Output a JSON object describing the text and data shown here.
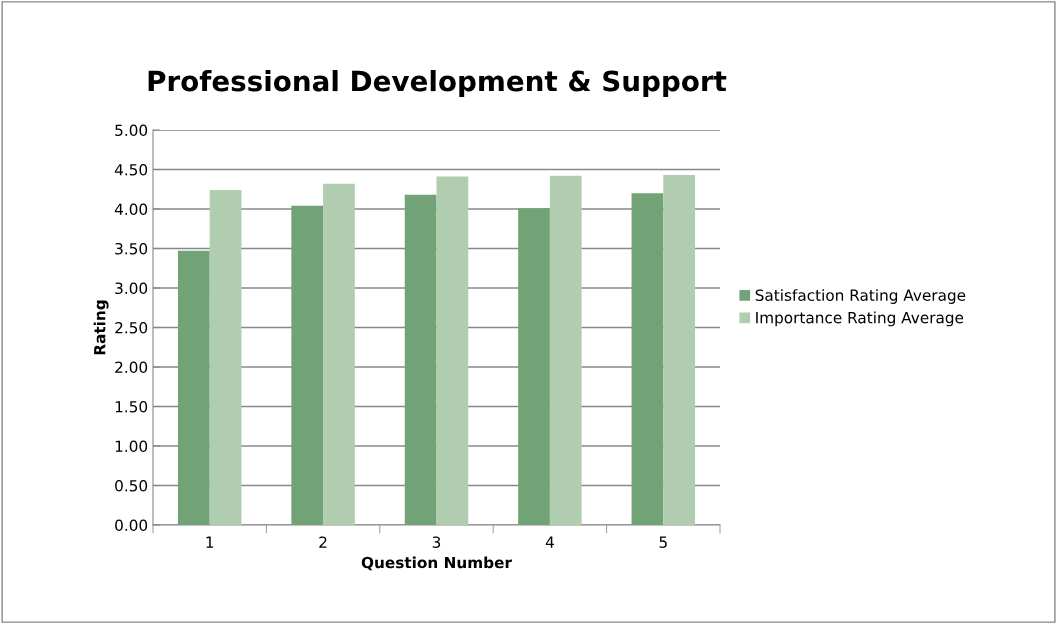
{
  "chart_data": {
    "type": "bar",
    "title": "Professional Development & Support",
    "xlabel": "Question Number",
    "ylabel": "Rating",
    "categories": [
      "1",
      "2",
      "3",
      "4",
      "5"
    ],
    "series": [
      {
        "name": "Satisfaction Rating Average",
        "color": "#71a376",
        "values": [
          3.47,
          4.04,
          4.18,
          4.01,
          4.2
        ]
      },
      {
        "name": "Importance Rating Average",
        "color": "#b0cdb0",
        "values": [
          4.24,
          4.32,
          4.41,
          4.42,
          4.43
        ]
      }
    ],
    "ylim": [
      0,
      5
    ],
    "yticks": [
      {
        "value": 0,
        "label": "0.00"
      },
      {
        "value": 0.5,
        "label": "0.50"
      },
      {
        "value": 1,
        "label": "1.00"
      },
      {
        "value": 1.5,
        "label": "1.50"
      },
      {
        "value": 2,
        "label": "2.00"
      },
      {
        "value": 2.5,
        "label": "2.50"
      },
      {
        "value": 3,
        "label": "3.00"
      },
      {
        "value": 3.5,
        "label": "3.50"
      },
      {
        "value": 4,
        "label": "4.00"
      },
      {
        "value": 4.5,
        "label": "4.50"
      },
      {
        "value": 5,
        "label": "5.00"
      }
    ],
    "grid": "y",
    "legend": "right"
  }
}
